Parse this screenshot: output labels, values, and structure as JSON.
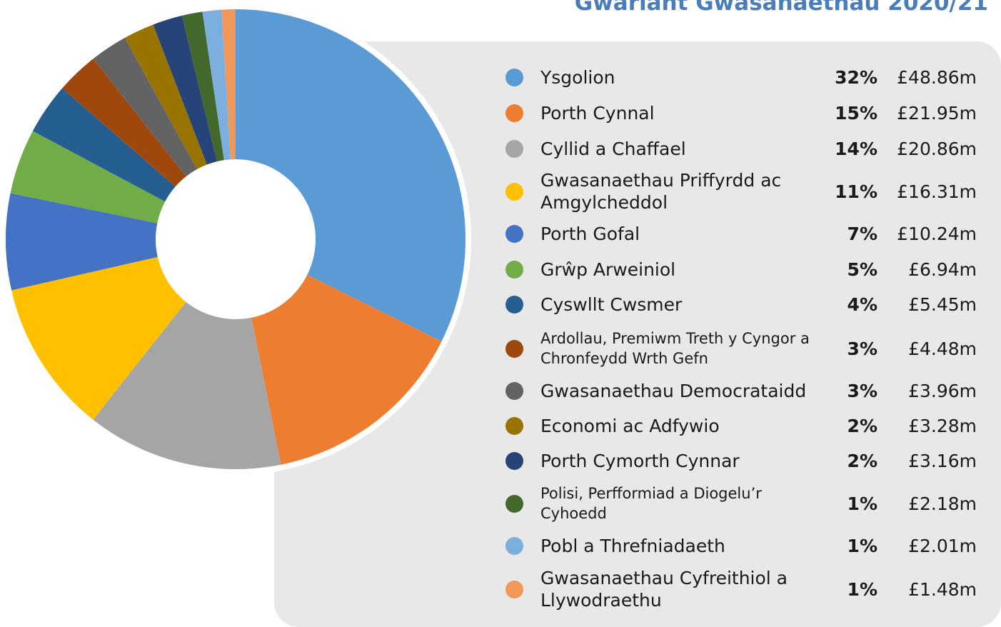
{
  "chart_data": {
    "type": "donut",
    "title": "Gwariant Gwasanaethau 2020/21",
    "categories": [
      "Ysgolion",
      "Porth Cynnal",
      "Cyllid a Chaffael",
      "Gwasanaethau Priffyrdd ac Amgylcheddol",
      "Porth Gofal",
      "Grŵp Arweiniol",
      "Cyswllt Cwsmer",
      "Ardollau, Premiwm Treth y Cyngor a Chronfeydd Wrth Gefn",
      "Gwasanaethau Democrataidd",
      "Economi ac Adfywio",
      "Porth Cymorth Cynnar",
      "Polisi, Perfformiad a Diogelu’r Cyhoedd",
      "Pobl a Threfniadaeth",
      "Gwasanaethau Cyfreithiol a Llywodraethu"
    ],
    "values": [
      48.86,
      21.95,
      20.86,
      16.31,
      10.24,
      6.94,
      5.45,
      4.48,
      3.96,
      3.28,
      3.16,
      2.18,
      2.01,
      1.48
    ],
    "value_labels": [
      "£48.86m",
      "£21.95m",
      "£20.86m",
      "£16.31m",
      "£10.24m",
      "£6.94m",
      "£5.45m",
      "£4.48m",
      "£3.96m",
      "£3.28m",
      "£3.16m",
      "£2.18m",
      "£2.01m",
      "£1.48m"
    ],
    "percent_labels": [
      "32%",
      "15%",
      "14%",
      "11%",
      "7%",
      "5%",
      "4%",
      "3%",
      "3%",
      "2%",
      "2%",
      "1%",
      "1%",
      "1%"
    ],
    "colors": [
      "#5b9bd5",
      "#ed7d31",
      "#a5a5a5",
      "#ffc000",
      "#4472c4",
      "#70ad47",
      "#255e91",
      "#9e480e",
      "#636363",
      "#997300",
      "#264478",
      "#43682b",
      "#7cafdd",
      "#f1975a"
    ],
    "legend": "right"
  }
}
